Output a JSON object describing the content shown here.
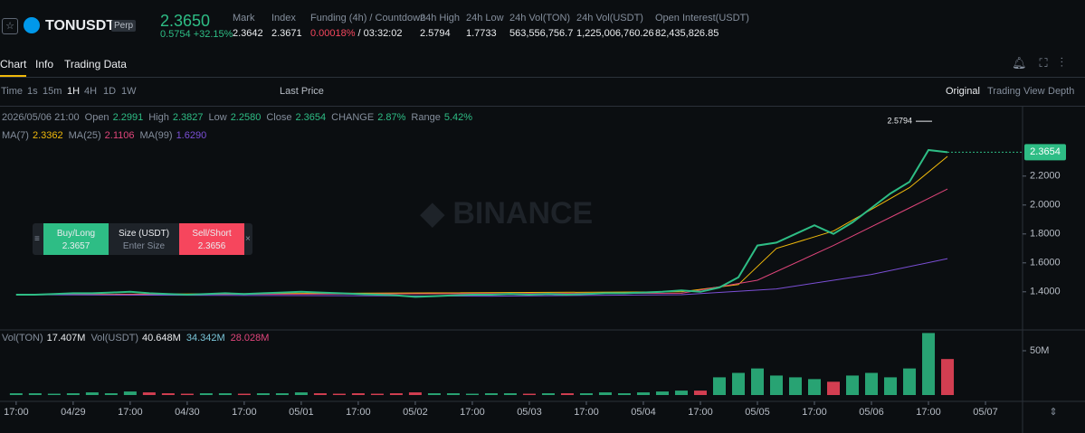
{
  "header": {
    "symbol": "TONUSDT",
    "badge": "Perp",
    "price": "2.3650",
    "change": "0.5754",
    "change_pct": "+32.15%",
    "stats": [
      {
        "label": "Mark",
        "value": "2.3642"
      },
      {
        "label": "Index",
        "value": "2.3671"
      },
      {
        "label": "Funding (4h) / Countdown",
        "value": "0.00018%",
        "extra": "/ 03:32:02"
      },
      {
        "label": "24h High",
        "value": "2.5794"
      },
      {
        "label": "24h Low",
        "value": "1.7733"
      },
      {
        "label": "24h Vol(TON)",
        "value": "563,556,756.7"
      },
      {
        "label": "24h Vol(USDT)",
        "value": "1,225,006,760.26"
      },
      {
        "label": "Open Interest(USDT)",
        "value": "82,435,826.85"
      }
    ]
  },
  "tabs": [
    "Chart",
    "Info",
    "Trading Data"
  ],
  "toolbar": {
    "time": "Time",
    "intervals": [
      "1s",
      "15m",
      "1H",
      "4H",
      "1D",
      "1W"
    ],
    "price_type": "Last Price",
    "views": [
      "Original",
      "Trading View",
      "Depth"
    ]
  },
  "info": {
    "date": "2026/05/06 21:00",
    "fields": [
      {
        "label": "Open",
        "value": "2.2991"
      },
      {
        "label": "High",
        "value": "2.3827"
      },
      {
        "label": "Low",
        "value": "2.2580"
      },
      {
        "label": "Close",
        "value": "2.3654"
      },
      {
        "label": "CHANGE",
        "value": "2.87%"
      },
      {
        "label": "Range",
        "value": "5.42%"
      }
    ]
  },
  "ma_legend": [
    {
      "label": "MA(7)",
      "value": "2.3362"
    },
    {
      "label": "MA(25)",
      "value": "2.1106"
    },
    {
      "label": "MA(99)",
      "value": "1.6290"
    }
  ],
  "vol_legend": {
    "ton_label": "Vol(TON)",
    "ton_value": "17.407M",
    "usdt_label": "Vol(USDT)",
    "usdt_value": "40.648M",
    "ma1": "34.342M",
    "ma2": "28.028M"
  },
  "order_widget": {
    "buy": "Buy/Long",
    "buy_price": "2.3657",
    "size": "Size (USDT)",
    "placeholder": "Enter Size",
    "sell": "Sell/Short",
    "sell_price": "2.3656"
  },
  "chart_data": {
    "type": "line",
    "x": [
      0,
      4,
      8,
      12,
      16,
      20,
      24,
      28,
      32,
      36,
      40,
      44,
      48,
      52,
      56,
      60,
      64,
      68,
      72,
      76,
      80,
      84,
      88,
      92,
      96,
      100,
      104,
      108,
      112,
      116,
      120,
      124,
      128,
      132,
      136,
      140,
      144,
      148,
      152,
      156,
      160,
      164,
      168,
      172,
      176,
      180,
      184,
      188,
      192,
      196
    ],
    "series": [
      {
        "name": "Price",
        "color": "#2ebd85",
        "values": [
          1.38,
          1.38,
          1.385,
          1.39,
          1.39,
          1.395,
          1.4,
          1.39,
          1.385,
          1.38,
          1.385,
          1.39,
          1.385,
          1.39,
          1.395,
          1.4,
          1.395,
          1.39,
          1.385,
          1.38,
          1.375,
          1.365,
          1.37,
          1.375,
          1.38,
          1.38,
          1.385,
          1.38,
          1.385,
          1.38,
          1.385,
          1.39,
          1.39,
          1.395,
          1.4,
          1.41,
          1.4,
          1.43,
          1.5,
          1.72,
          1.74,
          1.8,
          1.86,
          1.8,
          1.88,
          1.98,
          2.08,
          2.16,
          2.38,
          2.3654
        ]
      }
    ],
    "ma_lines": [
      {
        "name": "MA(7)",
        "color": "#f0b90b",
        "x": [
          0,
          140,
          152,
          160,
          172,
          188,
          196
        ],
        "values": [
          1.38,
          1.4,
          1.45,
          1.7,
          1.82,
          2.12,
          2.3362
        ]
      },
      {
        "name": "MA(25)",
        "color": "#e0457b",
        "x": [
          0,
          140,
          156,
          172,
          188,
          196
        ],
        "values": [
          1.38,
          1.39,
          1.48,
          1.72,
          1.98,
          2.1106
        ]
      },
      {
        "name": "MA(99)",
        "color": "#7b4fd6",
        "x": [
          0,
          100,
          140,
          160,
          180,
          196
        ],
        "values": [
          1.38,
          1.37,
          1.38,
          1.42,
          1.52,
          1.629
        ]
      }
    ],
    "volume": [
      2,
      2,
      1.5,
      2,
      3,
      2,
      4,
      3,
      2,
      1.5,
      2,
      2,
      1.5,
      2,
      2,
      3,
      2,
      1.5,
      2,
      1.5,
      2,
      3,
      2,
      2,
      1.5,
      2,
      2,
      1.5,
      2,
      2,
      2,
      3,
      2,
      3,
      4,
      5,
      5,
      20,
      25,
      30,
      22,
      20,
      18,
      15,
      22,
      25,
      20,
      30,
      70,
      40.648
    ],
    "xlim": [
      -3.4,
      211.8
    ],
    "xticks": [
      {
        "value": 0,
        "label": "17:00"
      },
      {
        "value": 12,
        "label": "04/29"
      },
      {
        "value": 24,
        "label": "17:00"
      },
      {
        "value": 36,
        "label": "04/30"
      },
      {
        "value": 48,
        "label": "17:00"
      },
      {
        "value": 60,
        "label": "05/01"
      },
      {
        "value": 72,
        "label": "17:00"
      },
      {
        "value": 84,
        "label": "05/02"
      },
      {
        "value": 96,
        "label": "17:00"
      },
      {
        "value": 108,
        "label": "05/03"
      },
      {
        "value": 120,
        "label": "17:00"
      },
      {
        "value": 132,
        "label": "05/04"
      },
      {
        "value": 144,
        "label": "17:00"
      },
      {
        "value": 156,
        "label": "05/05"
      },
      {
        "value": 168,
        "label": "17:00"
      },
      {
        "value": 180,
        "label": "05/06"
      },
      {
        "value": 192,
        "label": "17:00"
      },
      {
        "value": 204,
        "label": "05/07"
      }
    ],
    "ylim": [
      1.15,
      2.68
    ],
    "yticks": [
      {
        "value": 1.4,
        "label": "1.4000"
      },
      {
        "value": 1.6,
        "label": "1.6000"
      },
      {
        "value": 1.8,
        "label": "1.8000"
      },
      {
        "value": 2.0,
        "label": "2.0000"
      },
      {
        "value": 2.2,
        "label": "2.2000"
      }
    ],
    "vol_ylim": [
      0,
      75
    ],
    "vol_yticks": [
      {
        "value": 50,
        "label": "50M"
      }
    ],
    "high_label": "2.5794",
    "price_tag": "2.3654",
    "up_color": "#2ebd85",
    "down_color": "#f6465d"
  }
}
